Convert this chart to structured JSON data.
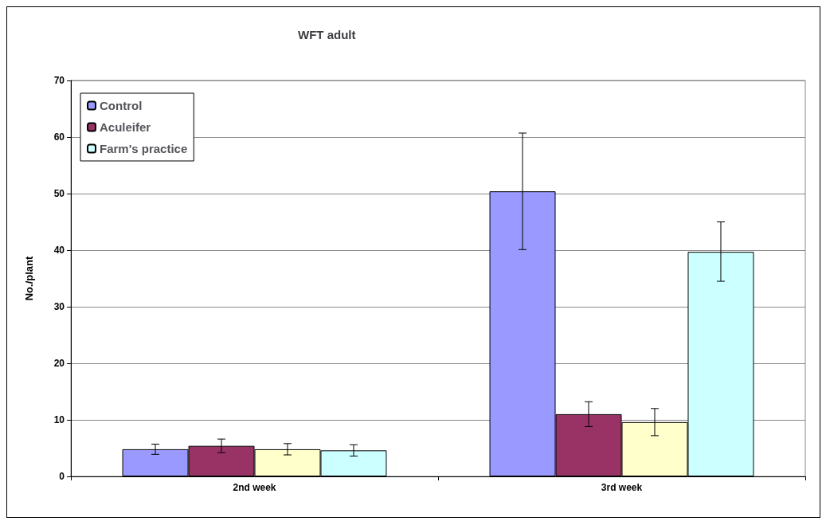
{
  "chart_data": {
    "type": "bar",
    "title": "WFT adult",
    "ylabel": "No./plant",
    "categories": [
      "2nd week",
      "3rd week"
    ],
    "series": [
      {
        "name": "Control",
        "color": "#9999ff",
        "values": [
          4.8,
          50.4
        ],
        "errors": [
          0.9,
          [
            40.1,
            60.7
          ]
        ]
      },
      {
        "name": "Aculeifer",
        "color": "#993366",
        "values": [
          5.4,
          11.0
        ],
        "errors": [
          1.2,
          [
            8.8,
            13.2
          ]
        ]
      },
      {
        "color": "#ffffcc",
        "values": [
          4.8,
          9.6
        ],
        "errors": [
          1.0,
          [
            7.2,
            12.0
          ]
        ]
      },
      {
        "name": "Farm's practice",
        "color": "#ccffff",
        "values": [
          4.6,
          39.7
        ],
        "errors": [
          1.0,
          [
            34.5,
            45.0
          ]
        ]
      }
    ],
    "ylim": [
      0,
      70
    ],
    "yticks": [
      0,
      10,
      20,
      30,
      40,
      50,
      60,
      70
    ],
    "grid": "y",
    "legend": "top left"
  }
}
